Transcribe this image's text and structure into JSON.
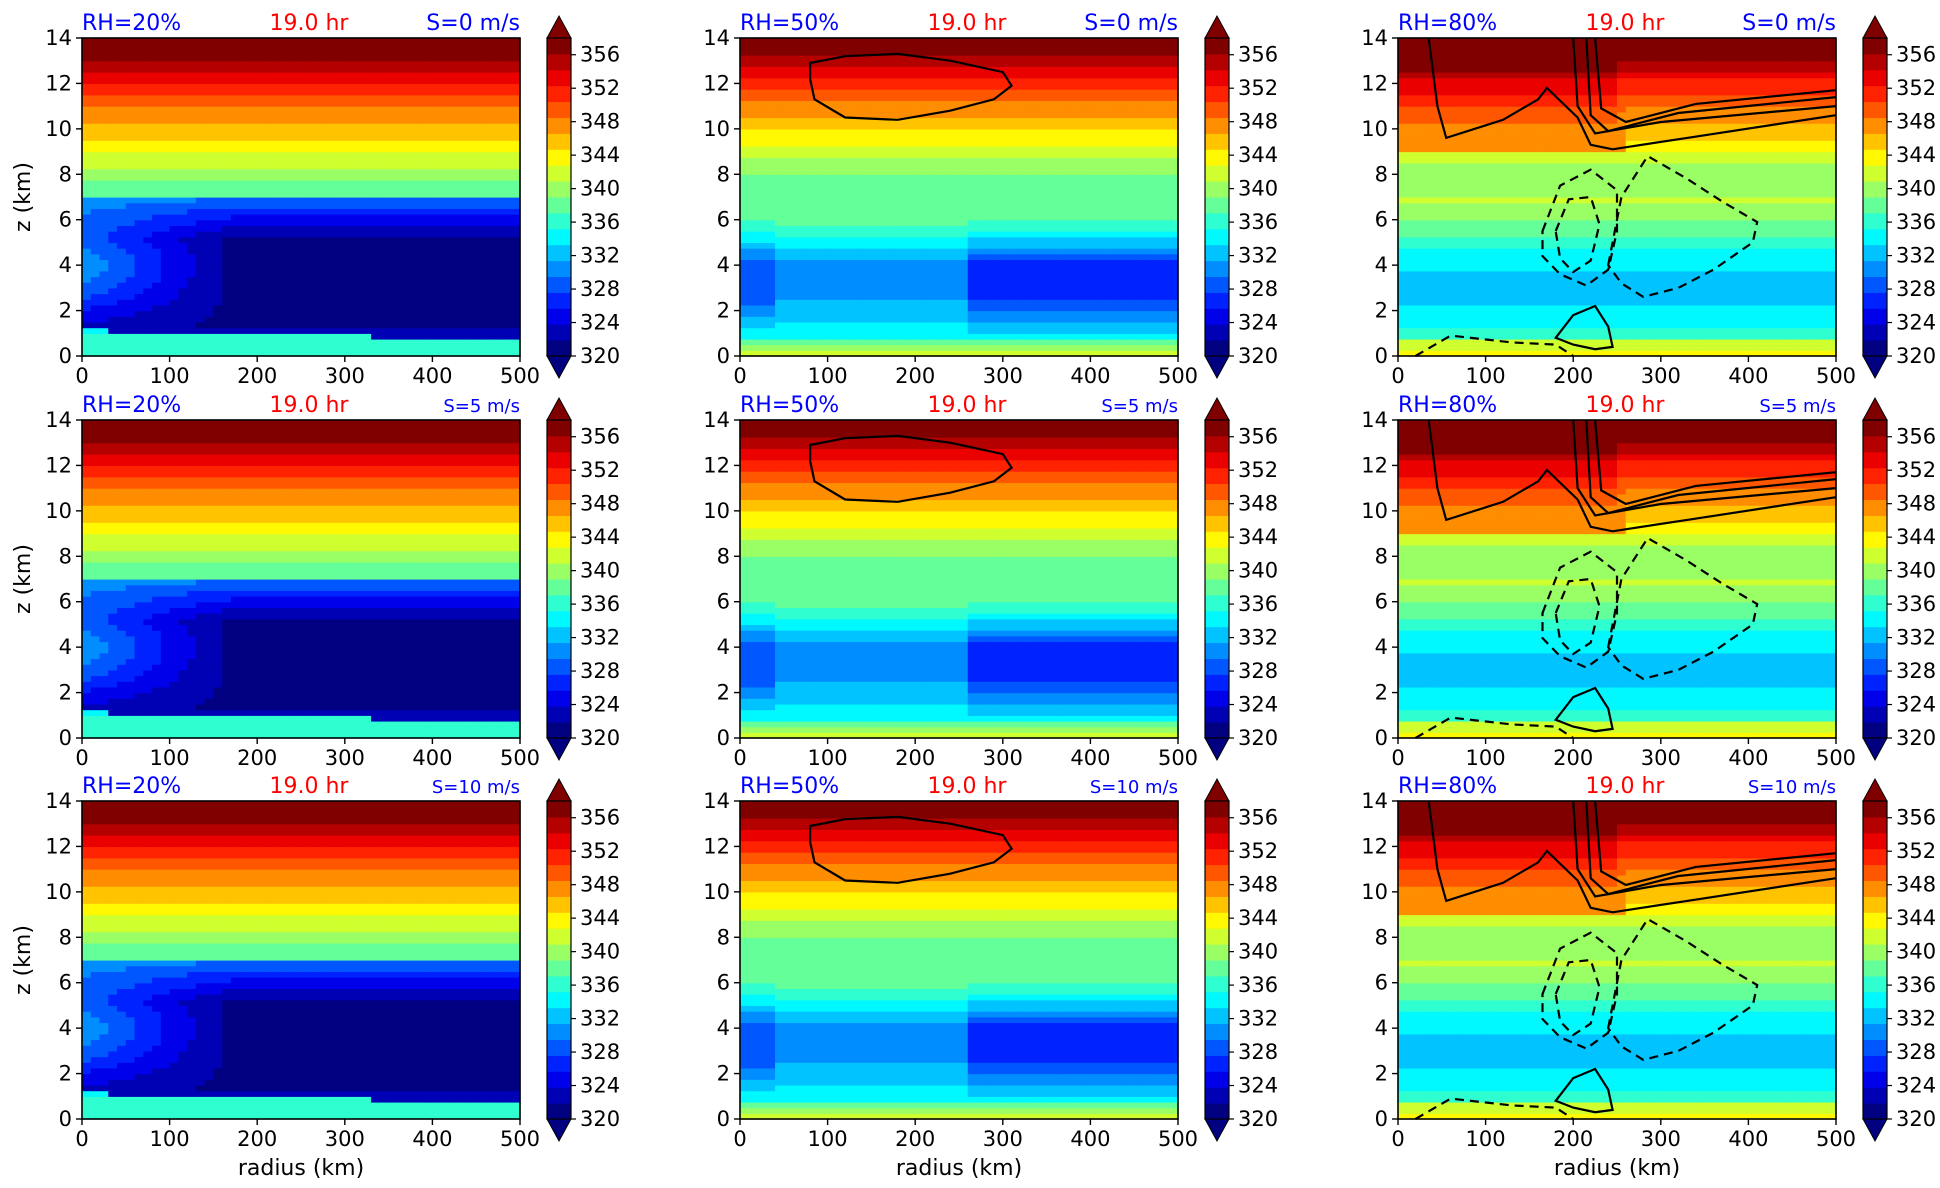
{
  "figure": {
    "colormap": "jet",
    "colorbar_ticks": [
      320,
      324,
      328,
      332,
      336,
      340,
      344,
      348,
      352,
      356
    ],
    "colorbar_range": [
      320,
      358
    ],
    "title_colors": {
      "left": "#0000ff",
      "center": "#ff0000",
      "right": "#0000ff"
    },
    "time_label": "19.0 hr",
    "xlabel": "radius (km)",
    "ylabel": "z (km)"
  },
  "chart_data": [
    {
      "type": "heatmap",
      "title_left": "RH=20%",
      "title_center": "19.0 hr",
      "title_right": "S=0 m/s",
      "rh": 20,
      "shear": 0,
      "xlim": [
        0,
        500
      ],
      "ylim": [
        0,
        14
      ],
      "xticks": [
        0,
        100,
        200,
        300,
        400,
        500
      ],
      "yticks": [
        0,
        2,
        4,
        6,
        8,
        10,
        12,
        14
      ],
      "xlabel": "",
      "ylabel": "z (km)"
    },
    {
      "type": "heatmap",
      "title_left": "RH=50%",
      "title_center": "19.0 hr",
      "title_right": "S=0 m/s",
      "rh": 50,
      "shear": 0,
      "xlim": [
        0,
        500
      ],
      "ylim": [
        0,
        14
      ],
      "xticks": [
        0,
        100,
        200,
        300,
        400,
        500
      ],
      "yticks": [
        0,
        2,
        4,
        6,
        8,
        10,
        12,
        14
      ],
      "xlabel": "",
      "ylabel": ""
    },
    {
      "type": "heatmap",
      "title_left": "RH=80%",
      "title_center": "19.0 hr",
      "title_right": "S=0 m/s",
      "rh": 80,
      "shear": 0,
      "xlim": [
        0,
        500
      ],
      "ylim": [
        0,
        14
      ],
      "xticks": [
        0,
        100,
        200,
        300,
        400,
        500
      ],
      "yticks": [
        0,
        2,
        4,
        6,
        8,
        10,
        12,
        14
      ],
      "xlabel": "",
      "ylabel": ""
    },
    {
      "type": "heatmap",
      "title_left": "RH=20%",
      "title_center": "19.0 hr",
      "title_right": "S=5 m/s",
      "rh": 20,
      "shear": 5,
      "xlim": [
        0,
        500
      ],
      "ylim": [
        0,
        14
      ],
      "xticks": [
        0,
        100,
        200,
        300,
        400,
        500
      ],
      "yticks": [
        0,
        2,
        4,
        6,
        8,
        10,
        12,
        14
      ],
      "xlabel": "",
      "ylabel": "z (km)"
    },
    {
      "type": "heatmap",
      "title_left": "RH=50%",
      "title_center": "19.0 hr",
      "title_right": "S=5 m/s",
      "rh": 50,
      "shear": 5,
      "xlim": [
        0,
        500
      ],
      "ylim": [
        0,
        14
      ],
      "xticks": [
        0,
        100,
        200,
        300,
        400,
        500
      ],
      "yticks": [
        0,
        2,
        4,
        6,
        8,
        10,
        12,
        14
      ],
      "xlabel": "",
      "ylabel": ""
    },
    {
      "type": "heatmap",
      "title_left": "RH=80%",
      "title_center": "19.0 hr",
      "title_right": "S=5 m/s",
      "rh": 80,
      "shear": 5,
      "xlim": [
        0,
        500
      ],
      "ylim": [
        0,
        14
      ],
      "xticks": [
        0,
        100,
        200,
        300,
        400,
        500
      ],
      "yticks": [
        0,
        2,
        4,
        6,
        8,
        10,
        12,
        14
      ],
      "xlabel": "",
      "ylabel": ""
    },
    {
      "type": "heatmap",
      "title_left": "RH=20%",
      "title_center": "19.0 hr",
      "title_right": "S=10 m/s",
      "rh": 20,
      "shear": 10,
      "xlim": [
        0,
        500
      ],
      "ylim": [
        0,
        14
      ],
      "xticks": [
        0,
        100,
        200,
        300,
        400,
        500
      ],
      "yticks": [
        0,
        2,
        4,
        6,
        8,
        10,
        12,
        14
      ],
      "xlabel": "radius (km)",
      "ylabel": "z (km)"
    },
    {
      "type": "heatmap",
      "title_left": "RH=50%",
      "title_center": "19.0 hr",
      "title_right": "S=10 m/s",
      "rh": 50,
      "shear": 10,
      "xlim": [
        0,
        500
      ],
      "ylim": [
        0,
        14
      ],
      "xticks": [
        0,
        100,
        200,
        300,
        400,
        500
      ],
      "yticks": [
        0,
        2,
        4,
        6,
        8,
        10,
        12,
        14
      ],
      "xlabel": "radius (km)",
      "ylabel": ""
    },
    {
      "type": "heatmap",
      "title_left": "RH=80%",
      "title_center": "19.0 hr",
      "title_right": "S=10 m/s",
      "rh": 80,
      "shear": 10,
      "xlim": [
        0,
        500
      ],
      "ylim": [
        0,
        14
      ],
      "xticks": [
        0,
        100,
        200,
        300,
        400,
        500
      ],
      "yticks": [
        0,
        2,
        4,
        6,
        8,
        10,
        12,
        14
      ],
      "xlabel": "radius (km)",
      "ylabel": ""
    }
  ]
}
